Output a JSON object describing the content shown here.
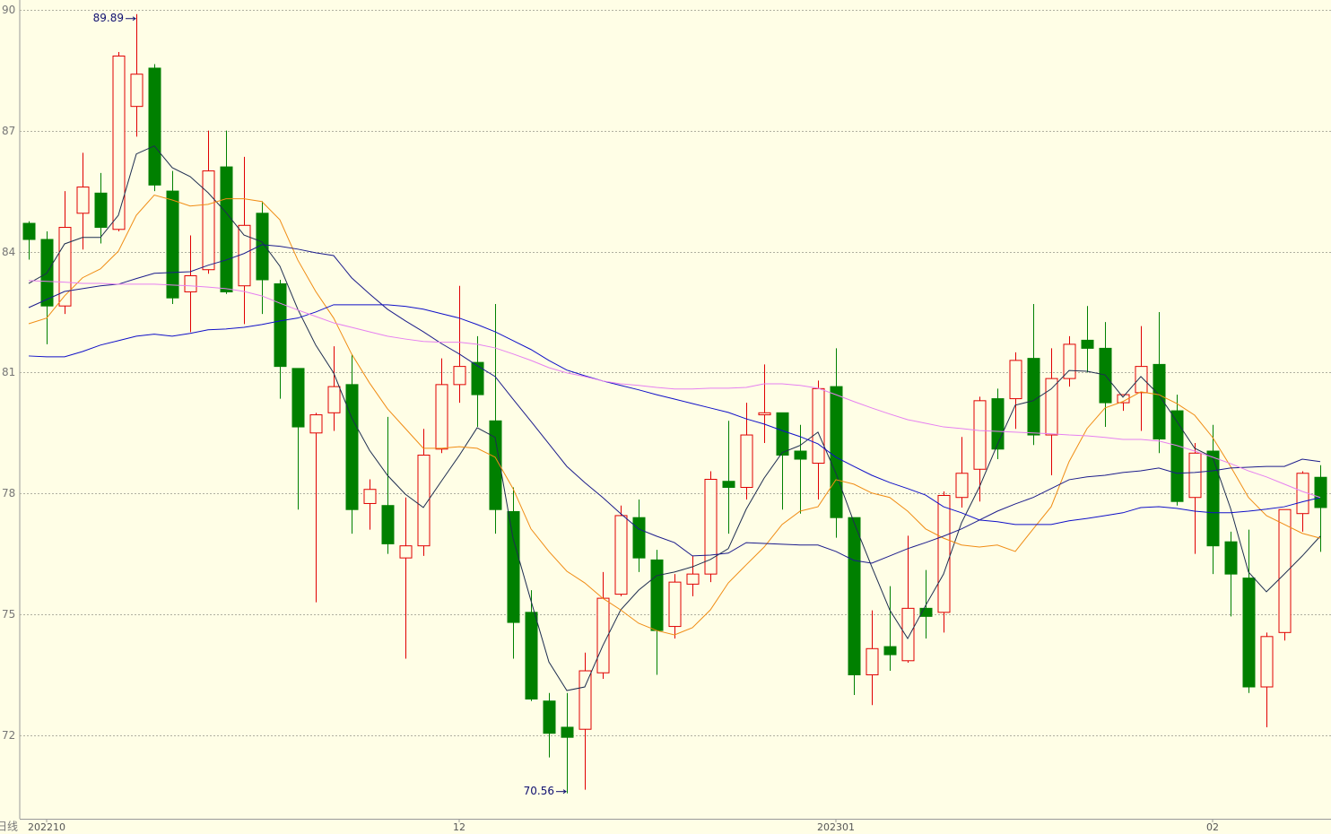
{
  "chart_data": {
    "type": "candlestick",
    "period": "日线",
    "categories": [
      null,
      "202210",
      null,
      null,
      null,
      null,
      null,
      null,
      null,
      null,
      null,
      null,
      null,
      null,
      null,
      null,
      null,
      null,
      null,
      null,
      null,
      null,
      null,
      null,
      "12",
      null,
      null,
      null,
      null,
      null,
      null,
      null,
      null,
      null,
      null,
      null,
      null,
      null,
      null,
      null,
      null,
      null,
      null,
      null,
      null,
      "202301",
      null,
      null,
      null,
      null,
      null,
      null,
      null,
      null,
      null,
      null,
      null,
      null,
      null,
      null,
      null,
      null,
      null,
      null,
      null,
      null,
      "02",
      null,
      null,
      null,
      null,
      null,
      null
    ],
    "open": [
      84.7,
      84.3,
      82.65,
      84.95,
      85.45,
      84.55,
      87.6,
      88.55,
      85.5,
      83.0,
      83.55,
      86.1,
      83.15,
      84.95,
      83.2,
      81.1,
      79.5,
      80.0,
      80.7,
      77.75,
      77.7,
      76.4,
      76.7,
      79.1,
      80.7,
      81.25,
      79.8,
      77.55,
      75.05,
      72.85,
      72.2,
      72.15,
      73.55,
      75.5,
      77.4,
      76.35,
      74.7,
      75.75,
      76.0,
      78.3,
      78.15,
      79.95,
      80.0,
      79.05,
      78.75,
      80.65,
      77.4,
      73.5,
      74.2,
      73.85,
      75.15,
      75.05,
      77.9,
      78.6,
      80.35,
      80.35,
      81.35,
      79.45,
      80.85,
      81.8,
      81.6,
      80.25,
      80.5,
      81.2,
      80.05,
      77.9,
      79.05,
      76.8,
      75.9,
      73.2,
      74.55,
      77.5,
      78.4
    ],
    "high": [
      84.75,
      84.5,
      85.5,
      86.45,
      85.95,
      88.95,
      89.89,
      88.65,
      86.0,
      84.4,
      87.0,
      87.0,
      86.35,
      85.25,
      83.3,
      81.1,
      80.0,
      81.65,
      81.45,
      78.35,
      79.9,
      77.9,
      79.6,
      81.35,
      83.15,
      81.9,
      82.7,
      78.15,
      75.6,
      73.05,
      73.05,
      74.05,
      76.05,
      77.7,
      77.85,
      76.6,
      76.0,
      76.45,
      78.55,
      79.8,
      80.25,
      81.2,
      80.0,
      79.7,
      80.8,
      81.6,
      77.4,
      75.1,
      75.7,
      76.95,
      76.1,
      78.05,
      79.4,
      80.4,
      80.6,
      81.5,
      82.7,
      81.6,
      81.9,
      82.65,
      82.25,
      80.45,
      82.15,
      82.5,
      80.45,
      79.25,
      79.7,
      77.05,
      77.1,
      74.55,
      77.6,
      78.55,
      78.7
    ],
    "low": [
      83.8,
      81.7,
      82.45,
      84.05,
      84.2,
      84.5,
      86.85,
      85.5,
      82.7,
      82.0,
      83.45,
      82.95,
      82.2,
      82.45,
      80.35,
      77.6,
      75.3,
      79.55,
      77.0,
      77.1,
      76.5,
      73.9,
      76.45,
      79.0,
      80.25,
      79.65,
      77.0,
      73.9,
      72.85,
      71.45,
      70.56,
      70.65,
      73.4,
      75.45,
      76.05,
      73.5,
      74.4,
      75.45,
      75.8,
      77.0,
      77.85,
      79.25,
      77.6,
      77.5,
      77.85,
      76.9,
      73.0,
      72.75,
      73.6,
      73.8,
      74.4,
      74.55,
      77.65,
      77.8,
      78.85,
      79.6,
      79.2,
      78.45,
      80.65,
      81.0,
      79.65,
      80.05,
      79.55,
      79.0,
      77.7,
      76.5,
      76.0,
      74.95,
      73.05,
      72.2,
      74.35,
      77.05,
      76.55
    ],
    "close": [
      84.3,
      82.65,
      84.6,
      85.6,
      84.6,
      88.85,
      88.4,
      85.65,
      82.85,
      83.4,
      86.0,
      83.0,
      84.65,
      83.3,
      81.15,
      79.65,
      79.95,
      80.65,
      77.6,
      78.1,
      76.75,
      76.7,
      78.95,
      80.7,
      81.15,
      80.45,
      77.6,
      74.8,
      72.9,
      72.05,
      71.95,
      73.6,
      75.4,
      77.45,
      76.4,
      74.6,
      75.8,
      76.0,
      78.35,
      78.15,
      79.45,
      80.0,
      78.95,
      78.85,
      80.6,
      77.4,
      73.5,
      74.15,
      74.0,
      75.15,
      74.95,
      77.95,
      78.5,
      80.3,
      79.1,
      81.3,
      79.45,
      80.85,
      81.7,
      81.6,
      80.25,
      80.45,
      81.15,
      79.35,
      77.8,
      79.0,
      76.7,
      76.0,
      73.2,
      74.45,
      77.6,
      78.5,
      77.65
    ],
    "up_color": "#e00000",
    "down_color": "#008000",
    "series": [
      {
        "color": "#1e2d50",
        "values": [
          83.21,
          83.46,
          84.19,
          84.35,
          84.35,
          84.9,
          86.42,
          86.62,
          86.08,
          85.86,
          85.46,
          84.97,
          84.41,
          84.24,
          83.64,
          82.57,
          81.68,
          80.99,
          79.88,
          79.07,
          78.45,
          77.98,
          77.65,
          78.3,
          78.94,
          79.63,
          79.39,
          76.89,
          75.34,
          73.82,
          73.11,
          73.2,
          74.22,
          75.11,
          75.6,
          75.96,
          76.05,
          76.18,
          76.36,
          76.63,
          77.61,
          78.38,
          79.01,
          79.19,
          79.52,
          78.5,
          77.29,
          76.18,
          75.11,
          74.4,
          75.22,
          76.0,
          77.27,
          78.16,
          79.21,
          80.19,
          80.3,
          80.59,
          81.05,
          81.03,
          80.94,
          80.39,
          80.9,
          80.45,
          79.79,
          79.12,
          78.9,
          77.63,
          76.05,
          75.56,
          76.0,
          76.45,
          76.94
        ]
      },
      {
        "color": "#f08c14",
        "values": [
          82.21,
          82.35,
          82.9,
          83.35,
          83.57,
          84.01,
          84.9,
          85.4,
          85.28,
          85.13,
          85.17,
          85.31,
          85.31,
          85.24,
          84.79,
          83.79,
          83.01,
          82.35,
          81.46,
          80.74,
          80.1,
          79.61,
          79.12,
          79.12,
          79.16,
          79.12,
          78.9,
          78.12,
          77.12,
          76.56,
          76.07,
          75.78,
          75.4,
          75.11,
          74.78,
          74.6,
          74.49,
          74.67,
          75.11,
          75.78,
          76.23,
          76.67,
          77.23,
          77.56,
          77.67,
          78.34,
          78.23,
          78.01,
          77.9,
          77.56,
          77.12,
          76.89,
          76.72,
          76.67,
          76.72,
          76.56,
          77.12,
          77.67,
          78.79,
          79.61,
          80.12,
          80.28,
          80.52,
          80.45,
          80.23,
          79.94,
          79.39,
          78.67,
          77.9,
          77.45,
          77.23,
          77.01,
          76.89
        ]
      },
      {
        "color": "#1c1c8c",
        "values": [
          82.61,
          82.81,
          83.01,
          83.08,
          83.15,
          83.19,
          83.33,
          83.46,
          83.48,
          83.5,
          83.66,
          83.79,
          83.95,
          84.17,
          84.13,
          84.06,
          83.97,
          83.9,
          83.35,
          82.95,
          82.57,
          82.28,
          82.01,
          81.72,
          81.46,
          81.17,
          80.9,
          80.34,
          79.79,
          79.23,
          78.67,
          78.27,
          77.9,
          77.5,
          77.12,
          76.94,
          76.78,
          76.45,
          76.47,
          76.52,
          76.78,
          76.76,
          76.74,
          76.72,
          76.72,
          76.56,
          76.34,
          76.27,
          76.45,
          76.63,
          76.78,
          76.94,
          77.12,
          77.34,
          77.56,
          77.74,
          77.9,
          78.12,
          78.34,
          78.41,
          78.45,
          78.52,
          78.56,
          78.63,
          78.5,
          78.52,
          78.56,
          78.63,
          78.65,
          78.67,
          78.67,
          78.85,
          78.79
        ]
      },
      {
        "color": "#1010c8",
        "values": [
          81.41,
          81.39,
          81.39,
          81.52,
          81.68,
          81.79,
          81.9,
          81.95,
          81.9,
          81.97,
          82.06,
          82.08,
          82.12,
          82.19,
          82.28,
          82.35,
          82.5,
          82.68,
          82.68,
          82.68,
          82.68,
          82.64,
          82.57,
          82.46,
          82.35,
          82.19,
          82.01,
          81.79,
          81.57,
          81.3,
          81.06,
          80.92,
          80.79,
          80.68,
          80.57,
          80.45,
          80.34,
          80.23,
          80.12,
          80.01,
          79.85,
          79.72,
          79.56,
          79.41,
          79.23,
          78.9,
          78.67,
          78.45,
          78.27,
          78.12,
          77.96,
          77.67,
          77.52,
          77.34,
          77.3,
          77.23,
          77.23,
          77.23,
          77.32,
          77.38,
          77.45,
          77.52,
          77.65,
          77.67,
          77.63,
          77.56,
          77.52,
          77.52,
          77.56,
          77.61,
          77.67,
          77.79,
          77.9
        ]
      },
      {
        "color": "#e680f0",
        "values": [
          83.28,
          83.26,
          83.24,
          83.21,
          83.21,
          83.19,
          83.19,
          83.19,
          83.17,
          83.15,
          83.12,
          83.08,
          83.01,
          82.9,
          82.72,
          82.55,
          82.39,
          82.23,
          82.12,
          82.01,
          81.9,
          81.83,
          81.77,
          81.75,
          81.75,
          81.7,
          81.61,
          81.46,
          81.3,
          81.12,
          80.99,
          80.9,
          80.79,
          80.72,
          80.68,
          80.63,
          80.59,
          80.59,
          80.61,
          80.61,
          80.63,
          80.72,
          80.72,
          80.68,
          80.61,
          80.45,
          80.28,
          80.12,
          79.97,
          79.83,
          79.74,
          79.65,
          79.61,
          79.56,
          79.54,
          79.52,
          79.5,
          79.48,
          79.45,
          79.43,
          79.39,
          79.34,
          79.34,
          79.3,
          79.19,
          79.05,
          78.9,
          78.74,
          78.56,
          78.41,
          78.23,
          78.05,
          77.9
        ]
      }
    ],
    "ylim": [
      69.93,
      90.24
    ],
    "yticks": [
      72,
      75,
      78,
      81,
      84,
      87,
      90
    ],
    "grid": true,
    "background": "#fffee6"
  }
}
